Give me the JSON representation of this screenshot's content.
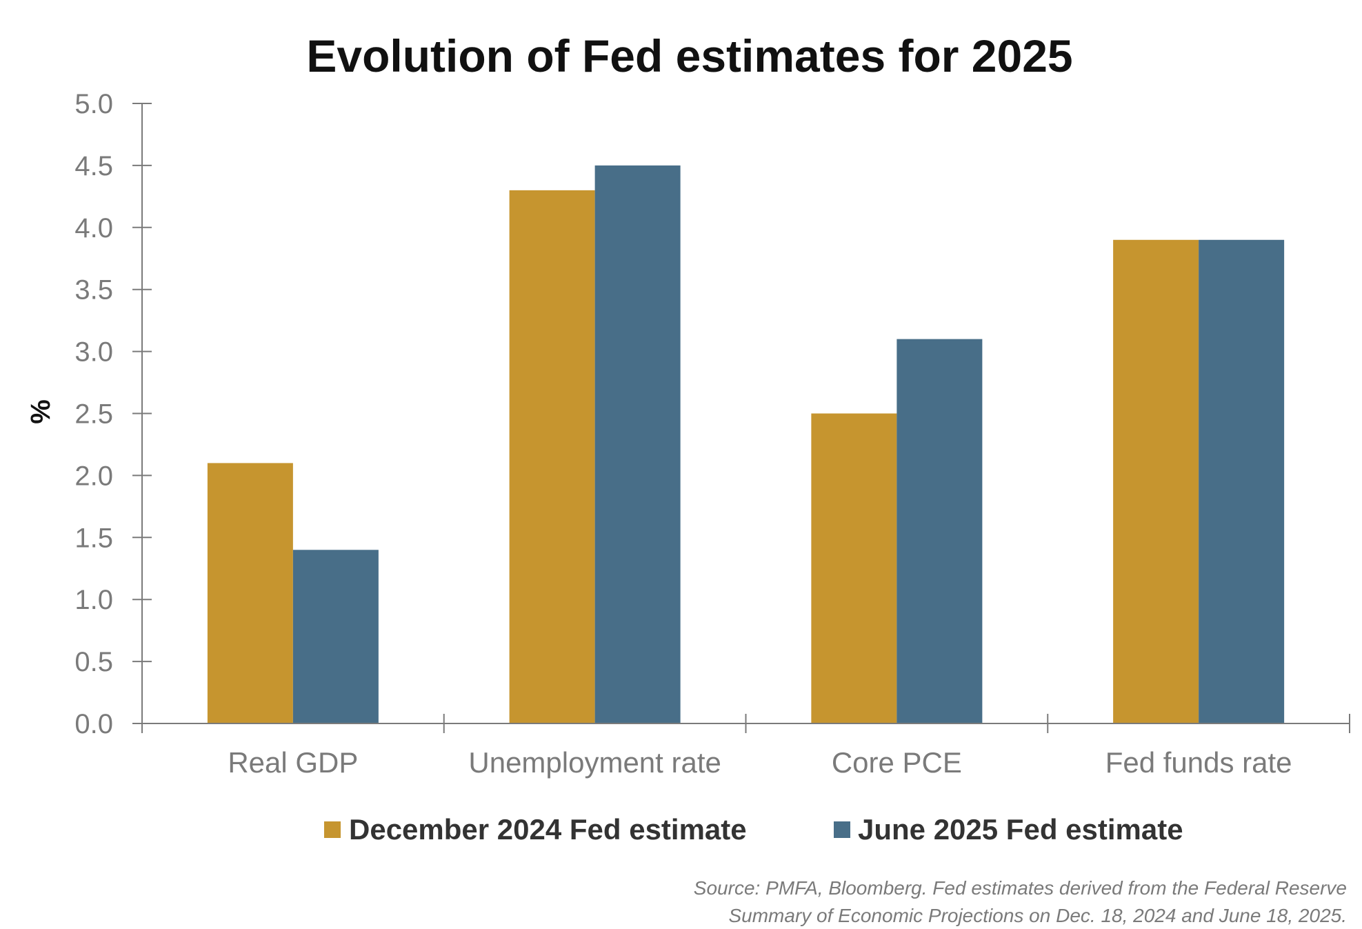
{
  "chart_data": {
    "type": "bar",
    "title": "Evolution of Fed estimates for 2025",
    "xlabel": "",
    "ylabel": "%",
    "ylim": [
      0,
      5.0
    ],
    "yticks": [
      "0.0",
      "0.5",
      "1.0",
      "1.5",
      "2.0",
      "2.5",
      "3.0",
      "3.5",
      "4.0",
      "4.5",
      "5.0"
    ],
    "categories": [
      "Real GDP",
      "Unemployment rate",
      "Core PCE",
      "Fed funds rate"
    ],
    "series": [
      {
        "name": "December 2024 Fed estimate",
        "color": "#C6952F",
        "values": [
          2.1,
          4.3,
          2.5,
          3.9
        ]
      },
      {
        "name": "June 2025 Fed estimate",
        "color": "#486E88",
        "values": [
          1.4,
          4.5,
          3.1,
          3.9
        ]
      }
    ],
    "legend_position": "bottom-center",
    "grid": false
  },
  "source": {
    "line1": "Source: PMFA, Bloomberg. Fed estimates derived from the Federal Reserve",
    "line2": "Summary of Economic Projections on Dec. 18, 2024 and June 18, 2025."
  },
  "colors": {
    "axis": "#7a7a7a"
  }
}
